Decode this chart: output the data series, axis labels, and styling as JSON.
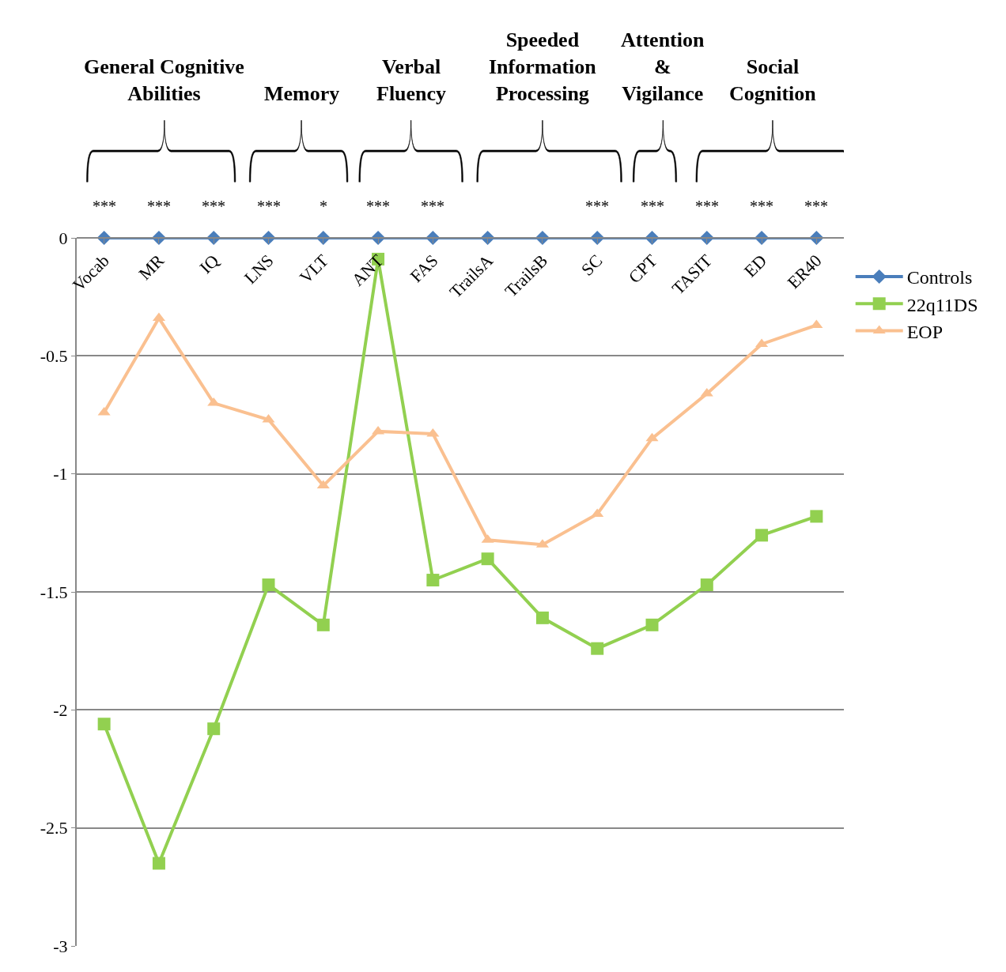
{
  "chart_data": {
    "type": "line",
    "categories": [
      "Vocab",
      "MR",
      "IQ",
      "LNS",
      "VLT",
      "ANT",
      "FAS",
      "TrailsA",
      "TrailsB",
      "SC",
      "CPT",
      "TASIT",
      "ED",
      "ER40"
    ],
    "series": [
      {
        "name": "Controls",
        "color": "#4a7ebb",
        "marker": "diamond",
        "values": [
          0,
          0,
          0,
          0,
          0,
          0,
          0,
          0,
          0,
          0,
          0,
          0,
          0,
          0
        ]
      },
      {
        "name": "22q11DS",
        "color": "#92d050",
        "marker": "square",
        "values": [
          -2.06,
          -2.65,
          -2.08,
          -1.47,
          -1.64,
          -0.09,
          -1.45,
          -1.36,
          -1.61,
          -1.74,
          -1.64,
          -1.47,
          -1.26,
          -1.18
        ]
      },
      {
        "name": "EOP",
        "color": "#fac090",
        "marker": "triangle",
        "values": [
          -0.74,
          -0.34,
          -0.7,
          -0.77,
          -1.05,
          -0.82,
          -0.83,
          -1.28,
          -1.3,
          -1.17,
          -0.85,
          -0.66,
          -0.45,
          -0.37
        ]
      }
    ],
    "ylim": [
      -3,
      0
    ],
    "yticks": [
      -3,
      -2.5,
      -2,
      -1.5,
      -1,
      -0.5,
      0
    ],
    "grid": "y",
    "legend": "right",
    "line_style": "solid",
    "annotations": [
      "General Cognitive\nAbilities",
      "Memory",
      "Verbal\nFluency",
      "Speeded\nInformation\nProcessing",
      "Attention\n&\nVigilance",
      "Social\nCognition",
      "***",
      "***",
      "***",
      "***",
      "*",
      "***",
      "***",
      "***",
      "***",
      "***",
      "***",
      "***"
    ]
  }
}
